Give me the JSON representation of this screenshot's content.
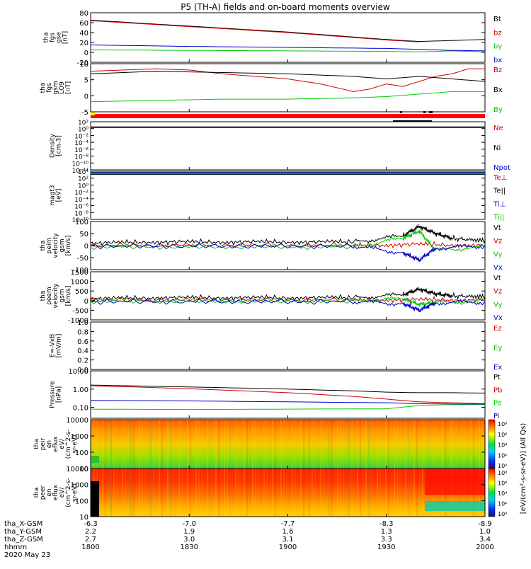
{
  "title": "P5 (TH-A) fields and on-board moments overview",
  "colors": {
    "black": "#000000",
    "red": "#cc0000",
    "green": "#00cc00",
    "blue": "#0000cc",
    "purple": "#7a00b0",
    "orange": "#ffa500",
    "gold": "#d4b000"
  },
  "chart_data": [
    {
      "id": "panel-fgs",
      "type": "line",
      "ylabel_lines": [
        "tha",
        "fgs",
        "gse",
        "[nT]"
      ],
      "ylim": [
        -20,
        80
      ],
      "yticks": [
        "80",
        "60",
        "40",
        "20",
        "0",
        "-20"
      ],
      "legend": [
        {
          "label": "Bt",
          "color": "#000000"
        },
        {
          "label": "bz",
          "color": "#cc0000"
        },
        {
          "label": "by",
          "color": "#00cc00"
        },
        {
          "label": "bx",
          "color": "#0000cc"
        }
      ],
      "series": [
        {
          "name": "Bt",
          "color": "#000000",
          "x": [
            0,
            10,
            20,
            30,
            40,
            50,
            60,
            70,
            80,
            90,
            100,
            110,
            120
          ],
          "y": [
            65,
            61,
            57,
            53,
            49,
            45,
            41,
            36,
            31,
            26,
            22,
            24,
            26
          ]
        },
        {
          "name": "bz",
          "color": "#cc0000",
          "x": [
            0,
            10,
            20,
            30,
            40,
            50,
            60,
            70,
            80,
            90,
            100
          ],
          "y": [
            64,
            60,
            56,
            52,
            48,
            44,
            40,
            35,
            30,
            25,
            21
          ]
        },
        {
          "name": "by",
          "color": "#00cc00",
          "x": [
            0,
            30,
            60,
            90,
            100,
            110,
            120
          ],
          "y": [
            5,
            4,
            3,
            2,
            1,
            3,
            1
          ]
        },
        {
          "name": "bx",
          "color": "#0000cc",
          "x": [
            0,
            30,
            60,
            90,
            100,
            110,
            120
          ],
          "y": [
            15,
            12,
            10,
            8,
            6,
            4,
            3
          ]
        }
      ]
    },
    {
      "id": "panel-fgs-gsm",
      "type": "line",
      "ylabel_lines": [
        "tha",
        "fgs",
        "gsm",
        "LO9",
        "[nT]"
      ],
      "ylim": [
        -7,
        12
      ],
      "yticks": [
        "10",
        "5",
        "0",
        "-5"
      ],
      "legend": [
        {
          "label": "Bz",
          "color": "#cc0000"
        },
        {
          "label": "Bx",
          "color": "#000000"
        },
        {
          "label": "By",
          "color": "#00cc00"
        }
      ],
      "series": [
        {
          "name": "Bz",
          "color": "#cc0000",
          "x": [
            0,
            10,
            20,
            30,
            40,
            50,
            60,
            70,
            80,
            85,
            90,
            95,
            100,
            105,
            110,
            115,
            120
          ],
          "y": [
            9,
            9.5,
            10,
            9.5,
            8,
            7,
            6,
            4,
            1,
            2,
            4,
            3,
            5,
            7,
            8,
            10,
            10
          ]
        },
        {
          "name": "Bx",
          "color": "#000000",
          "x": [
            0,
            20,
            40,
            60,
            80,
            90,
            100,
            110,
            120
          ],
          "y": [
            8,
            9,
            8.5,
            8,
            7,
            6,
            7,
            6,
            5
          ]
        },
        {
          "name": "By",
          "color": "#00cc00",
          "x": [
            0,
            20,
            40,
            60,
            80,
            90,
            100,
            110,
            120
          ],
          "y": [
            -3,
            -2.5,
            -2,
            -2,
            -1.5,
            -1,
            0,
            1,
            1
          ]
        }
      ]
    },
    {
      "id": "panel-density",
      "type": "line",
      "log_scale": true,
      "ylabel_lines": [
        "Density",
        "[cm-3]"
      ],
      "ylim_log10": [
        -12,
        2
      ],
      "yticks": [
        "10²",
        "10⁰",
        "10⁻²",
        "10⁻⁴",
        "10⁻⁶",
        "10⁻⁸",
        "10⁻¹⁰",
        "10⁻¹²"
      ],
      "legend": [
        {
          "label": "Ne",
          "color": "#cc0000"
        },
        {
          "label": "Ni",
          "color": "#000000"
        },
        {
          "label": "Npot",
          "color": "#0000cc"
        }
      ],
      "series": [
        {
          "name": "Ne",
          "color": "#cc0000",
          "x": [
            0,
            120
          ],
          "y_log10": [
            0.4,
            0.4
          ]
        },
        {
          "name": "Ni",
          "color": "#000000",
          "x": [
            0,
            120
          ],
          "y_log10": [
            0.5,
            0.5
          ]
        },
        {
          "name": "Npot",
          "color": "#0000cc",
          "x": [
            0,
            120
          ],
          "y_log10": [
            0.3,
            0.3
          ]
        }
      ]
    },
    {
      "id": "panel-temp",
      "type": "line",
      "log_scale": true,
      "ylabel_lines": [
        "magt3",
        "[eV]"
      ],
      "ylim_log10": [
        -10,
        4
      ],
      "yticks": [
        "10⁴",
        "10²",
        "10⁰",
        "10⁻²",
        "10⁻⁴",
        "10⁻⁶",
        "10⁻⁸",
        "10⁻¹⁰"
      ],
      "legend": [
        {
          "label": "Te⊥",
          "color": "#cc0000"
        },
        {
          "label": "Te||",
          "color": "#000000"
        },
        {
          "label": "Ti⊥",
          "color": "#0000cc"
        },
        {
          "label": "Ti||",
          "color": "#00cc00"
        }
      ],
      "series": [
        {
          "name": "Te⊥",
          "color": "#cc0000",
          "x": [
            0,
            120
          ],
          "y_log10": [
            3.3,
            3.3
          ]
        },
        {
          "name": "Te||",
          "color": "#000000",
          "x": [
            0,
            120
          ],
          "y_log10": [
            3.1,
            3.1
          ]
        },
        {
          "name": "Ti⊥",
          "color": "#0000cc",
          "x": [
            0,
            120
          ],
          "y_log10": [
            3.7,
            3.7
          ]
        },
        {
          "name": "Ti||",
          "color": "#00cc00",
          "x": [
            0,
            120
          ],
          "y_log10": [
            3.5,
            3.5
          ]
        }
      ]
    },
    {
      "id": "panel-peim",
      "type": "line",
      "ylabel_lines": [
        "tha",
        "peim",
        "velocity",
        "gsm",
        "[km/s]"
      ],
      "ylim": [
        -100,
        100
      ],
      "yticks": [
        "100",
        "50",
        "0",
        "-50",
        "-100"
      ],
      "legend": [
        {
          "label": "Vt",
          "color": "#000000"
        },
        {
          "label": "Vz",
          "color": "#cc0000"
        },
        {
          "label": "Vy",
          "color": "#00cc00"
        },
        {
          "label": "Vx",
          "color": "#0000cc"
        }
      ],
      "series": [
        {
          "name": "Vt",
          "color": "#000000",
          "x": [
            0,
            20,
            40,
            60,
            80,
            95,
            100,
            105,
            110,
            120
          ],
          "y": [
            10,
            15,
            15,
            15,
            15,
            40,
            80,
            50,
            30,
            20
          ]
        },
        {
          "name": "Vz",
          "color": "#cc0000",
          "x": [
            0,
            40,
            80,
            100,
            120
          ],
          "y": [
            0,
            2,
            0,
            5,
            0
          ]
        },
        {
          "name": "Vy",
          "color": "#00cc00",
          "x": [
            0,
            40,
            80,
            95,
            100,
            105,
            120
          ],
          "y": [
            -5,
            -5,
            -5,
            30,
            60,
            -20,
            -5
          ]
        },
        {
          "name": "Vx",
          "color": "#0000cc",
          "x": [
            0,
            40,
            80,
            95,
            100,
            105,
            120
          ],
          "y": [
            -2,
            -2,
            -2,
            -30,
            -60,
            -10,
            -2
          ]
        }
      ]
    },
    {
      "id": "panel-peem",
      "type": "line",
      "ylabel_lines": [
        "tha",
        "peem",
        "velocity",
        "gsm",
        "[km/s]"
      ],
      "ylim": [
        -1000,
        1500
      ],
      "yticks": [
        "1500",
        "1000",
        "500",
        "0",
        "-500",
        "-1000"
      ],
      "legend": [
        {
          "label": "Vt",
          "color": "#000000"
        },
        {
          "label": "Vz",
          "color": "#cc0000"
        },
        {
          "label": "Vy",
          "color": "#00cc00"
        },
        {
          "label": "Vx",
          "color": "#0000cc"
        }
      ],
      "series": [
        {
          "name": "Vt",
          "color": "#000000",
          "x": [
            0,
            20,
            40,
            60,
            80,
            95,
            100,
            105,
            110,
            120
          ],
          "y": [
            100,
            150,
            150,
            150,
            150,
            300,
            600,
            350,
            250,
            200
          ]
        },
        {
          "name": "Vz",
          "color": "#cc0000",
          "x": [
            0,
            40,
            80,
            100,
            120
          ],
          "y": [
            30,
            30,
            30,
            50,
            30
          ]
        },
        {
          "name": "Vy",
          "color": "#00cc00",
          "x": [
            0,
            40,
            80,
            95,
            100,
            105,
            120
          ],
          "y": [
            -20,
            -20,
            -20,
            100,
            -200,
            -100,
            -20
          ]
        },
        {
          "name": "Vx",
          "color": "#0000cc",
          "x": [
            0,
            40,
            80,
            95,
            100,
            105,
            120
          ],
          "y": [
            -50,
            -50,
            -50,
            -150,
            -500,
            -100,
            -80
          ]
        }
      ]
    },
    {
      "id": "panel-efield",
      "type": "line",
      "ylabel_lines": [
        "E=-VxB",
        "[mV/m]"
      ],
      "ylim": [
        0,
        1
      ],
      "yticks": [
        "1.0",
        "0.8",
        "0.6",
        "0.4",
        "0.2",
        "0.0"
      ],
      "legend": [
        {
          "label": "Ez",
          "color": "#cc0000"
        },
        {
          "label": "Ey",
          "color": "#00cc00"
        },
        {
          "label": "Ex",
          "color": "#0000cc"
        }
      ],
      "series": []
    },
    {
      "id": "panel-pressure",
      "type": "line",
      "log_scale": true,
      "ylabel_lines": [
        "Pressure",
        "[nPa]"
      ],
      "ylim_log10": [
        -1.6,
        1
      ],
      "yticks": [
        "10.00",
        "1.00",
        "0.10"
      ],
      "ytick_values_log10": [
        1,
        0,
        -1
      ],
      "legend": [
        {
          "label": "Pt",
          "color": "#000000"
        },
        {
          "label": "Pb",
          "color": "#cc0000"
        },
        {
          "label": "Pe",
          "color": "#00cc00"
        },
        {
          "label": "Pi",
          "color": "#0000cc"
        }
      ],
      "series": [
        {
          "name": "Pt",
          "color": "#000000",
          "x": [
            0,
            20,
            40,
            60,
            80,
            90,
            100,
            110,
            120
          ],
          "y_log10": [
            0.22,
            0.15,
            0.08,
            0.0,
            -0.1,
            -0.17,
            -0.2,
            -0.2,
            -0.22
          ]
        },
        {
          "name": "Pb",
          "color": "#cc0000",
          "x": [
            0,
            20,
            40,
            60,
            80,
            90,
            100,
            110,
            120
          ],
          "y_log10": [
            0.18,
            0.08,
            -0.05,
            -0.2,
            -0.4,
            -0.55,
            -0.7,
            -0.75,
            -0.8
          ]
        },
        {
          "name": "Pe",
          "color": "#00cc00",
          "x": [
            0,
            30,
            60,
            90,
            100,
            110,
            120
          ],
          "y_log10": [
            -1.1,
            -1.12,
            -1.1,
            -1.08,
            -0.9,
            -0.85,
            -0.85
          ]
        },
        {
          "name": "Pi",
          "color": "#0000cc",
          "x": [
            0,
            30,
            60,
            90,
            100,
            110,
            120
          ],
          "y_log10": [
            -0.62,
            -0.65,
            -0.7,
            -0.75,
            -0.8,
            -0.82,
            -0.82
          ]
        }
      ]
    },
    {
      "id": "panel-peir",
      "type": "heatmap",
      "ylabel_lines": [
        "tha",
        "peir",
        "en",
        "eflux",
        "eV/",
        "(cm^2-s-",
        "sr-eV)"
      ],
      "yticks": [
        "10000",
        "1000",
        "100",
        "10"
      ]
    },
    {
      "id": "panel-peer",
      "type": "heatmap",
      "ylabel_lines": [
        "tha",
        "peer",
        "en",
        "eflux",
        "eV/",
        "(cm^2-s-",
        "sr-eV)"
      ],
      "yticks": [
        "10000",
        "1000",
        "100",
        "10"
      ]
    }
  ],
  "colorbar": {
    "label": "[eV/(cm²-s-sr-eV)] (All Qs)",
    "ticks_top": [
      "10⁸",
      "10⁶",
      "10⁴",
      "10²",
      "10⁰"
    ],
    "ticks_bottom": [
      "10⁸",
      "10⁶",
      "10⁴",
      "10²",
      "10⁰"
    ]
  },
  "status_bars": {
    "top_color": "#ff0000",
    "segment_marks": "black segments near 1930"
  },
  "x_axis": {
    "rows": [
      {
        "label": "tha_X-GSM",
        "values": [
          "-6.3",
          "-7.0",
          "-7.7",
          "-8.3",
          "-8.9"
        ]
      },
      {
        "label": "tha_Y-GSM",
        "values": [
          "2.2",
          "1.9",
          "1.6",
          "1.3",
          "1.0"
        ]
      },
      {
        "label": "tha_Z-GSM",
        "values": [
          "2.7",
          "3.0",
          "3.1",
          "3.3",
          "3.4"
        ]
      },
      {
        "label": "hhmm",
        "values": [
          "1800",
          "1830",
          "1900",
          "1930",
          "2000"
        ]
      }
    ],
    "date": "2020 May 23",
    "minutes": [
      0,
      30,
      60,
      90,
      120
    ]
  }
}
